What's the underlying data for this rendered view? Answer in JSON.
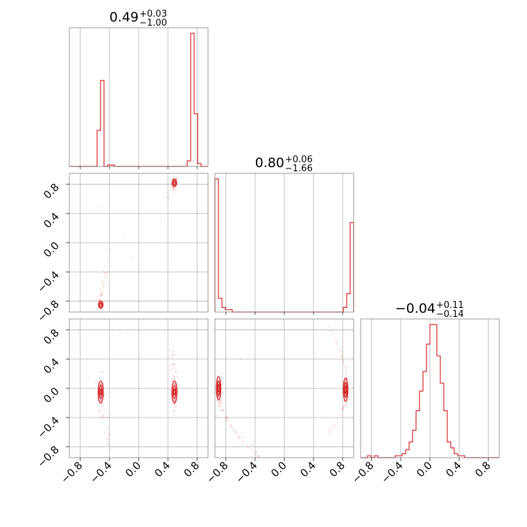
{
  "chart_data": {
    "type": "corner",
    "color": "#d62728",
    "grid": true,
    "range": [
      -0.95,
      0.95
    ],
    "ticks": [
      -0.8,
      -0.4,
      0.0,
      0.4,
      0.8
    ],
    "tick_labels": [
      "−0.8",
      "−0.4",
      "0.0",
      "0.4",
      "0.8"
    ],
    "titles": [
      {
        "value": "0.49",
        "plus": "+0.03",
        "minus": "−1.00"
      },
      {
        "value": "0.80",
        "plus": "+0.06",
        "minus": "−1.66"
      },
      {
        "value": "−0.04",
        "plus": "+0.11",
        "minus": "−0.14"
      }
    ],
    "histograms": [
      {
        "bin_edges_start": -0.95,
        "bin_width": 0.0475,
        "counts": [
          0,
          0,
          0,
          0,
          0,
          0,
          0,
          0,
          26,
          62,
          0,
          1,
          1,
          0,
          0,
          0,
          0,
          0,
          0,
          0,
          0,
          0,
          0,
          0,
          0,
          0,
          0,
          0,
          0,
          0,
          0,
          0,
          0,
          0,
          4,
          96,
          38,
          2,
          0,
          0
        ]
      },
      {
        "bin_edges_start": -0.95,
        "bin_width": 0.0475,
        "counts": [
          58,
          6,
          2,
          1,
          1,
          0,
          0,
          0,
          0,
          0,
          0,
          0,
          0,
          0,
          0,
          0,
          0,
          0,
          0,
          0,
          0,
          0,
          0,
          0,
          0,
          0,
          0,
          0,
          0,
          0,
          0,
          0,
          0,
          0,
          0,
          0,
          0,
          2,
          8,
          39
        ]
      },
      {
        "bin_edges_start": -0.95,
        "bin_width": 0.0475,
        "counts": [
          0,
          0,
          1,
          0,
          1,
          0,
          0,
          0,
          0,
          0,
          1,
          1,
          2,
          4,
          8,
          14,
          24,
          34,
          44,
          58,
          68,
          68,
          52,
          38,
          24,
          8,
          5,
          2,
          1,
          1,
          0,
          0,
          0,
          0,
          0,
          0,
          0,
          0,
          0,
          0
        ]
      }
    ],
    "contours": [
      {
        "row": 1,
        "col": 0,
        "centers": [
          [
            0.49,
            0.82
          ],
          [
            -0.52,
            -0.85
          ]
        ]
      },
      {
        "row": 2,
        "col": 0,
        "centers": [
          [
            -0.52,
            -0.05
          ],
          [
            0.49,
            -0.05
          ]
        ]
      },
      {
        "row": 2,
        "col": 1,
        "centers": [
          [
            -0.9,
            0.0
          ],
          [
            0.84,
            -0.02
          ]
        ]
      }
    ]
  }
}
